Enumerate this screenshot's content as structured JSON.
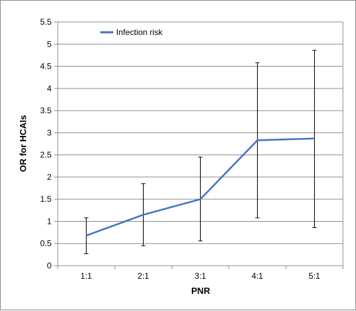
{
  "chart_data": {
    "type": "line",
    "title": "",
    "xlabel": "PNR",
    "ylabel": "OR for HCAIs",
    "categories": [
      "1:1",
      "2:1",
      "3:1",
      "4:1",
      "5:1"
    ],
    "ylim": [
      0,
      5.5
    ],
    "yticks": [
      "0",
      "0.5",
      "1",
      "1.5",
      "2",
      "2.5",
      "3",
      "3.5",
      "4",
      "4.5",
      "5",
      "5.5"
    ],
    "grid": true,
    "legend_position": "top-left",
    "series": [
      {
        "name": "Infection risk",
        "color": "#4472C4",
        "values": [
          0.68,
          1.15,
          1.5,
          2.83,
          2.87
        ],
        "error_low": [
          0.27,
          0.45,
          0.56,
          1.08,
          0.86
        ],
        "error_high": [
          1.08,
          1.85,
          2.45,
          4.58,
          4.86
        ]
      }
    ]
  }
}
